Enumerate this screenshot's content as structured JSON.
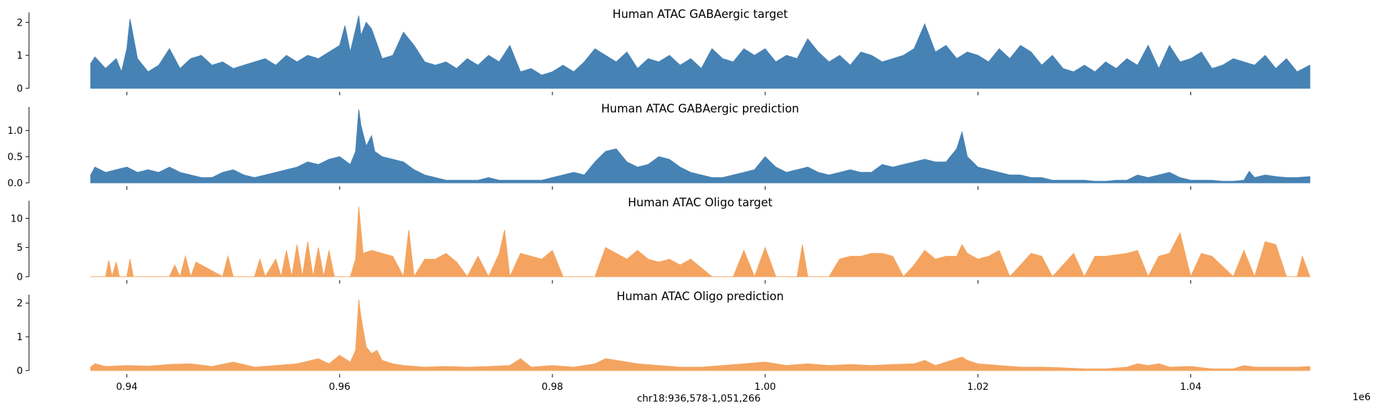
{
  "figure": {
    "xlabel": "chr18:936,578-1,051,266",
    "x_offset_label": "1e6"
  },
  "chart_data": [
    {
      "type": "area",
      "title": "Human ATAC GABAergic target",
      "color": "#4682b4",
      "xlim": [
        0.936578,
        1.051266
      ],
      "ylim": [
        0,
        2.3
      ],
      "yticks": [
        "0",
        "1",
        "2"
      ],
      "ytick_values": [
        0,
        1,
        2
      ],
      "xticks": [
        0.94,
        0.96,
        0.98,
        1.0,
        1.02,
        1.04
      ],
      "xtick_labels": [],
      "x": [
        0.9366,
        0.937,
        0.938,
        0.939,
        0.9395,
        0.94,
        0.9403,
        0.941,
        0.942,
        0.943,
        0.944,
        0.945,
        0.946,
        0.947,
        0.948,
        0.949,
        0.95,
        0.951,
        0.952,
        0.953,
        0.954,
        0.955,
        0.956,
        0.957,
        0.958,
        0.959,
        0.96,
        0.9605,
        0.961,
        0.9618,
        0.962,
        0.9625,
        0.963,
        0.964,
        0.965,
        0.966,
        0.967,
        0.968,
        0.969,
        0.97,
        0.971,
        0.972,
        0.973,
        0.974,
        0.975,
        0.976,
        0.977,
        0.978,
        0.979,
        0.98,
        0.981,
        0.982,
        0.983,
        0.984,
        0.985,
        0.986,
        0.987,
        0.988,
        0.989,
        0.99,
        0.991,
        0.992,
        0.993,
        0.994,
        0.995,
        0.996,
        0.997,
        0.998,
        0.999,
        1.0,
        1.001,
        1.002,
        1.003,
        1.004,
        1.005,
        1.006,
        1.007,
        1.008,
        1.009,
        1.01,
        1.011,
        1.012,
        1.013,
        1.014,
        1.015,
        1.016,
        1.017,
        1.018,
        1.019,
        1.02,
        1.021,
        1.022,
        1.023,
        1.024,
        1.025,
        1.026,
        1.027,
        1.028,
        1.029,
        1.03,
        1.031,
        1.032,
        1.033,
        1.034,
        1.035,
        1.036,
        1.037,
        1.038,
        1.039,
        1.04,
        1.041,
        1.042,
        1.043,
        1.044,
        1.045,
        1.046,
        1.047,
        1.048,
        1.049,
        1.05,
        1.0512
      ],
      "values": [
        0.75,
        0.95,
        0.6,
        0.9,
        0.5,
        1.2,
        2.1,
        0.9,
        0.5,
        0.7,
        1.2,
        0.6,
        0.9,
        1.0,
        0.7,
        0.8,
        0.6,
        0.7,
        0.8,
        0.9,
        0.7,
        1.0,
        0.8,
        1.0,
        0.9,
        1.1,
        1.3,
        1.9,
        1.1,
        2.2,
        1.6,
        2.0,
        1.8,
        0.9,
        1.0,
        1.7,
        1.3,
        0.8,
        0.7,
        0.8,
        0.6,
        0.9,
        0.7,
        1.0,
        0.8,
        1.3,
        0.5,
        0.6,
        0.4,
        0.5,
        0.7,
        0.5,
        0.8,
        1.2,
        1.0,
        0.8,
        1.1,
        0.6,
        0.9,
        0.8,
        1.0,
        0.7,
        0.9,
        0.6,
        1.2,
        0.9,
        0.8,
        1.2,
        1.0,
        1.2,
        0.8,
        1.0,
        0.9,
        1.5,
        1.1,
        0.8,
        1.0,
        0.7,
        1.1,
        1.0,
        0.8,
        0.9,
        1.0,
        1.2,
        1.95,
        1.1,
        1.3,
        0.9,
        1.1,
        1.0,
        0.8,
        1.2,
        0.9,
        1.3,
        1.1,
        0.7,
        1.0,
        0.6,
        0.5,
        0.7,
        0.5,
        0.8,
        0.6,
        0.9,
        0.7,
        1.3,
        0.6,
        1.3,
        0.8,
        0.9,
        1.1,
        0.6,
        0.7,
        0.9,
        0.8,
        0.7,
        1.0,
        0.6,
        0.9,
        0.5,
        0.7
      ]
    },
    {
      "type": "area",
      "title": "Human ATAC GABAergic prediction",
      "color": "#4682b4",
      "xlim": [
        0.936578,
        1.051266
      ],
      "ylim": [
        0,
        1.45
      ],
      "yticks": [
        "0.0",
        "0.5",
        "1.0"
      ],
      "ytick_values": [
        0,
        0.5,
        1.0
      ],
      "xticks": [
        0.94,
        0.96,
        0.98,
        1.0,
        1.02,
        1.04
      ],
      "xtick_labels": [],
      "x": [
        0.9366,
        0.937,
        0.938,
        0.939,
        0.94,
        0.941,
        0.942,
        0.943,
        0.944,
        0.945,
        0.946,
        0.947,
        0.948,
        0.949,
        0.95,
        0.951,
        0.952,
        0.953,
        0.954,
        0.955,
        0.956,
        0.957,
        0.958,
        0.959,
        0.96,
        0.961,
        0.9615,
        0.9618,
        0.962,
        0.9625,
        0.963,
        0.9633,
        0.964,
        0.965,
        0.966,
        0.967,
        0.968,
        0.969,
        0.97,
        0.971,
        0.972,
        0.973,
        0.974,
        0.975,
        0.976,
        0.977,
        0.978,
        0.979,
        0.98,
        0.981,
        0.982,
        0.983,
        0.984,
        0.985,
        0.986,
        0.987,
        0.988,
        0.989,
        0.99,
        0.991,
        0.992,
        0.993,
        0.994,
        0.995,
        0.996,
        0.997,
        0.998,
        0.999,
        1.0,
        1.001,
        1.002,
        1.003,
        1.004,
        1.005,
        1.006,
        1.007,
        1.008,
        1.009,
        1.01,
        1.011,
        1.012,
        1.013,
        1.014,
        1.015,
        1.016,
        1.017,
        1.018,
        1.0185,
        1.019,
        1.02,
        1.021,
        1.022,
        1.023,
        1.024,
        1.025,
        1.026,
        1.027,
        1.028,
        1.029,
        1.03,
        1.031,
        1.032,
        1.033,
        1.034,
        1.035,
        1.036,
        1.037,
        1.038,
        1.039,
        1.04,
        1.041,
        1.042,
        1.043,
        1.044,
        1.045,
        1.0455,
        1.046,
        1.047,
        1.048,
        1.049,
        1.05,
        1.0512
      ],
      "values": [
        0.15,
        0.3,
        0.2,
        0.25,
        0.3,
        0.2,
        0.25,
        0.2,
        0.3,
        0.2,
        0.15,
        0.1,
        0.1,
        0.2,
        0.25,
        0.15,
        0.1,
        0.15,
        0.2,
        0.25,
        0.3,
        0.4,
        0.35,
        0.45,
        0.5,
        0.35,
        0.6,
        1.4,
        1.1,
        0.7,
        0.9,
        0.6,
        0.5,
        0.45,
        0.4,
        0.25,
        0.15,
        0.1,
        0.05,
        0.05,
        0.05,
        0.05,
        0.1,
        0.05,
        0.05,
        0.05,
        0.05,
        0.05,
        0.1,
        0.15,
        0.2,
        0.15,
        0.4,
        0.6,
        0.65,
        0.4,
        0.3,
        0.35,
        0.5,
        0.45,
        0.3,
        0.2,
        0.15,
        0.1,
        0.1,
        0.15,
        0.2,
        0.25,
        0.5,
        0.3,
        0.2,
        0.25,
        0.3,
        0.2,
        0.15,
        0.2,
        0.25,
        0.2,
        0.2,
        0.35,
        0.3,
        0.35,
        0.4,
        0.45,
        0.4,
        0.4,
        0.65,
        0.97,
        0.5,
        0.3,
        0.25,
        0.2,
        0.15,
        0.15,
        0.1,
        0.1,
        0.05,
        0.05,
        0.05,
        0.05,
        0.03,
        0.03,
        0.05,
        0.05,
        0.15,
        0.1,
        0.15,
        0.2,
        0.1,
        0.05,
        0.05,
        0.05,
        0.03,
        0.03,
        0.05,
        0.22,
        0.1,
        0.15,
        0.12,
        0.1,
        0.1,
        0.12
      ]
    },
    {
      "type": "area",
      "title": "Human ATAC Oligo target",
      "color": "#f4a460",
      "xlim": [
        0.936578,
        1.051266
      ],
      "ylim": [
        0,
        13
      ],
      "yticks": [
        "0",
        "5",
        "10"
      ],
      "ytick_values": [
        0,
        5,
        10
      ],
      "xticks": [
        0.94,
        0.96,
        0.98,
        1.0,
        1.02,
        1.04
      ],
      "xtick_labels": [],
      "x": [
        0.9366,
        0.938,
        0.9383,
        0.9386,
        0.939,
        0.9393,
        0.94,
        0.9403,
        0.9406,
        0.941,
        0.944,
        0.9445,
        0.945,
        0.9455,
        0.946,
        0.9465,
        0.949,
        0.9495,
        0.95,
        0.952,
        0.9525,
        0.953,
        0.954,
        0.9545,
        0.955,
        0.9555,
        0.956,
        0.9565,
        0.957,
        0.9575,
        0.958,
        0.9585,
        0.959,
        0.9595,
        0.96,
        0.961,
        0.9615,
        0.9618,
        0.9622,
        0.963,
        0.964,
        0.965,
        0.966,
        0.9665,
        0.967,
        0.968,
        0.969,
        0.97,
        0.971,
        0.972,
        0.973,
        0.974,
        0.975,
        0.9755,
        0.976,
        0.977,
        0.978,
        0.979,
        0.98,
        0.981,
        0.982,
        0.984,
        0.985,
        0.986,
        0.987,
        0.988,
        0.989,
        0.99,
        0.991,
        0.992,
        0.993,
        0.995,
        0.997,
        0.998,
        0.999,
        1.0,
        1.001,
        1.002,
        1.003,
        1.0035,
        1.004,
        1.006,
        1.007,
        1.008,
        1.009,
        1.01,
        1.011,
        1.012,
        1.013,
        1.014,
        1.015,
        1.016,
        1.017,
        1.018,
        1.0185,
        1.019,
        1.02,
        1.021,
        1.022,
        1.023,
        1.025,
        1.026,
        1.027,
        1.029,
        1.03,
        1.031,
        1.032,
        1.034,
        1.035,
        1.036,
        1.037,
        1.038,
        1.039,
        1.04,
        1.041,
        1.042,
        1.044,
        1.045,
        1.046,
        1.047,
        1.048,
        1.049,
        1.05,
        1.0505,
        1.0512
      ],
      "values": [
        0,
        0,
        2.8,
        0,
        2.5,
        0,
        0,
        3.0,
        0,
        0,
        0,
        2.0,
        0,
        3.5,
        0,
        2.5,
        0,
        3.5,
        0,
        0,
        3.0,
        0,
        3.0,
        0,
        4.5,
        0,
        5.5,
        0,
        6.0,
        0,
        5.0,
        0,
        4.5,
        0,
        0,
        0,
        3.0,
        12.0,
        4.0,
        4.5,
        4.0,
        3.5,
        0,
        8.0,
        0,
        3.0,
        3.0,
        4.0,
        2.5,
        0,
        3.5,
        0,
        4.0,
        8.0,
        0,
        4.0,
        3.5,
        3.0,
        4.5,
        0,
        0,
        0,
        5.0,
        4.0,
        3.0,
        4.5,
        3.0,
        2.5,
        3.0,
        2.0,
        3.0,
        0,
        0,
        4.5,
        0,
        5.0,
        0,
        0,
        0,
        5.5,
        0,
        0,
        3.0,
        3.5,
        3.5,
        4.0,
        4.0,
        3.5,
        0,
        2.0,
        4.5,
        3.0,
        3.5,
        3.5,
        5.5,
        4.0,
        3.0,
        3.5,
        4.5,
        0,
        4.0,
        3.5,
        0,
        4.0,
        0,
        3.5,
        3.5,
        4.0,
        4.5,
        0,
        3.5,
        4.0,
        7.5,
        0,
        4.0,
        3.5,
        0,
        4.5,
        0,
        6.0,
        5.5,
        0,
        0,
        3.5,
        0
      ]
    },
    {
      "type": "area",
      "title": "Human ATAC Oligo prediction",
      "color": "#f4a460",
      "xlim": [
        0.936578,
        1.051266
      ],
      "ylim": [
        0,
        2.25
      ],
      "yticks": [
        "0",
        "1",
        "2"
      ],
      "ytick_values": [
        0,
        1,
        2
      ],
      "xticks": [
        0.94,
        0.96,
        0.98,
        1.0,
        1.02,
        1.04
      ],
      "xtick_labels": [
        "0.94",
        "0.96",
        "0.98",
        "1.00",
        "1.02",
        "1.04"
      ],
      "x": [
        0.9366,
        0.937,
        0.938,
        0.94,
        0.942,
        0.944,
        0.946,
        0.948,
        0.95,
        0.952,
        0.954,
        0.956,
        0.958,
        0.959,
        0.96,
        0.961,
        0.9615,
        0.9618,
        0.962,
        0.9625,
        0.963,
        0.9635,
        0.964,
        0.965,
        0.966,
        0.968,
        0.97,
        0.972,
        0.974,
        0.976,
        0.977,
        0.978,
        0.98,
        0.982,
        0.984,
        0.985,
        0.986,
        0.988,
        0.99,
        0.992,
        0.994,
        0.996,
        0.998,
        1.0,
        1.002,
        1.004,
        1.006,
        1.008,
        1.01,
        1.012,
        1.014,
        1.015,
        1.016,
        1.017,
        1.018,
        1.0185,
        1.019,
        1.02,
        1.022,
        1.024,
        1.026,
        1.028,
        1.03,
        1.032,
        1.034,
        1.035,
        1.036,
        1.037,
        1.038,
        1.04,
        1.042,
        1.044,
        1.045,
        1.046,
        1.048,
        1.05,
        1.0512
      ],
      "values": [
        0.1,
        0.2,
        0.12,
        0.15,
        0.13,
        0.18,
        0.2,
        0.12,
        0.25,
        0.1,
        0.15,
        0.2,
        0.35,
        0.2,
        0.45,
        0.25,
        0.6,
        2.1,
        1.6,
        0.7,
        0.5,
        0.6,
        0.3,
        0.2,
        0.15,
        0.1,
        0.12,
        0.1,
        0.12,
        0.15,
        0.35,
        0.1,
        0.15,
        0.1,
        0.2,
        0.35,
        0.3,
        0.2,
        0.15,
        0.1,
        0.1,
        0.15,
        0.2,
        0.25,
        0.15,
        0.2,
        0.15,
        0.18,
        0.15,
        0.18,
        0.2,
        0.3,
        0.15,
        0.25,
        0.35,
        0.4,
        0.3,
        0.2,
        0.15,
        0.1,
        0.1,
        0.08,
        0.05,
        0.05,
        0.1,
        0.2,
        0.15,
        0.2,
        0.1,
        0.12,
        0.05,
        0.05,
        0.15,
        0.1,
        0.1,
        0.1,
        0.12
      ]
    }
  ]
}
